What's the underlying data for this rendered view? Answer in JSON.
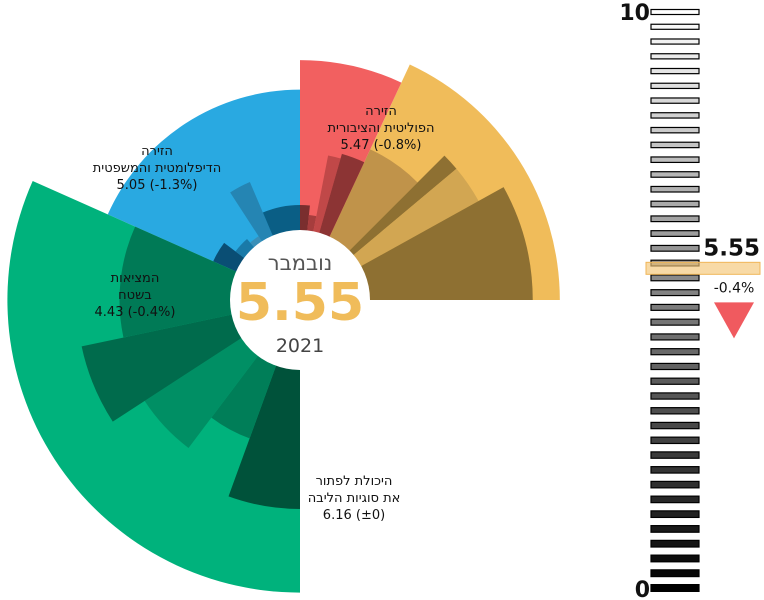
{
  "chart_data": {
    "type": "polar-area",
    "value_range": [
      0,
      10
    ],
    "center": {
      "month": "נובמבר",
      "value": "5.55",
      "year": "2021"
    },
    "sectors": [
      {
        "id": "political",
        "name_lines": [
          "הזירה",
          "הפוליטית והציבורית"
        ],
        "value": 5.47,
        "value_label": "5.47 (-0.8%)",
        "color": "#f0bc5a",
        "start_deg": -65,
        "end_deg": 0,
        "subsectors": [
          {
            "value": 3.5,
            "color": "#c0934a",
            "from": 0,
            "to": 20
          },
          {
            "value": 4.3,
            "color": "#8e7032",
            "from": 20,
            "to": 25
          },
          {
            "value": 4.3,
            "color": "#d2a652",
            "from": 25,
            "to": 36
          },
          {
            "value": 4.9,
            "color": "#8e7032",
            "from": 36,
            "to": 65
          }
        ]
      },
      {
        "id": "diplomatic",
        "name_lines": [
          "הזירה",
          "הדיפלומטית והמשפטית"
        ],
        "value": 5.05,
        "value_label": "5.05 (-1.3%)",
        "color": "#f26060",
        "start_deg": -90,
        "end_deg": -65,
        "subsectors": [
          {
            "value": 2.0,
            "color": "#7a2e2e",
            "from": 0,
            "to": 6
          },
          {
            "value": 1.8,
            "color": "#a63d3d",
            "from": 6,
            "to": 11
          },
          {
            "value": 3.1,
            "color": "#c04848",
            "from": 11,
            "to": 16
          },
          {
            "value": 3.2,
            "color": "#8c3434",
            "from": 16,
            "to": 25
          }
        ]
      },
      {
        "id": "field",
        "name_lines": [
          "המציאות",
          "בשטח"
        ],
        "value": 4.43,
        "value_label": "4.43 (-0.4%)",
        "color": "#29a9e1",
        "start_deg": -156,
        "end_deg": -90,
        "subsectors": [
          {
            "value": 2.0,
            "color": "#0a4e74",
            "from": 0,
            "to": 13
          },
          {
            "value": 1.7,
            "color": "#1a7aa8",
            "from": 13,
            "to": 25
          },
          {
            "value": 1.6,
            "color": "#3a8fb8",
            "from": 25,
            "to": 33
          },
          {
            "value": 2.7,
            "color": "#2585b3",
            "from": 33,
            "to": 43
          },
          {
            "value": 2.0,
            "color": "#0a5e85",
            "from": 43,
            "to": 66
          }
        ]
      },
      {
        "id": "heart",
        "name_lines": [
          "היכולת לפתור",
          "את סוגיות הליבה"
        ],
        "value": 6.16,
        "value_label": "6.16 (±0)",
        "color": "#00b27c",
        "start_deg": 90,
        "end_deg": 204,
        "subsectors": [
          {
            "value": 4.4,
            "color": "#00523a",
            "from": 0,
            "to": 20
          },
          {
            "value": 3.1,
            "color": "#007e58",
            "from": 20,
            "to": 37
          },
          {
            "value": 3.9,
            "color": "#008f64",
            "from": 37,
            "to": 57
          },
          {
            "value": 4.7,
            "color": "#006b4c",
            "from": 57,
            "to": 78
          },
          {
            "value": 3.8,
            "color": "#007a56",
            "from": 78,
            "to": 114
          }
        ]
      }
    ],
    "scale": {
      "min": 0,
      "max": 10,
      "min_label": "0",
      "max_label": "10",
      "ticks": 40,
      "marker": {
        "value": 5.55,
        "value_label": "5.55",
        "change_label": "-0.4%",
        "direction": "down",
        "marker_color": "#f5c677",
        "arrow_color": "#f05a5f"
      }
    }
  }
}
